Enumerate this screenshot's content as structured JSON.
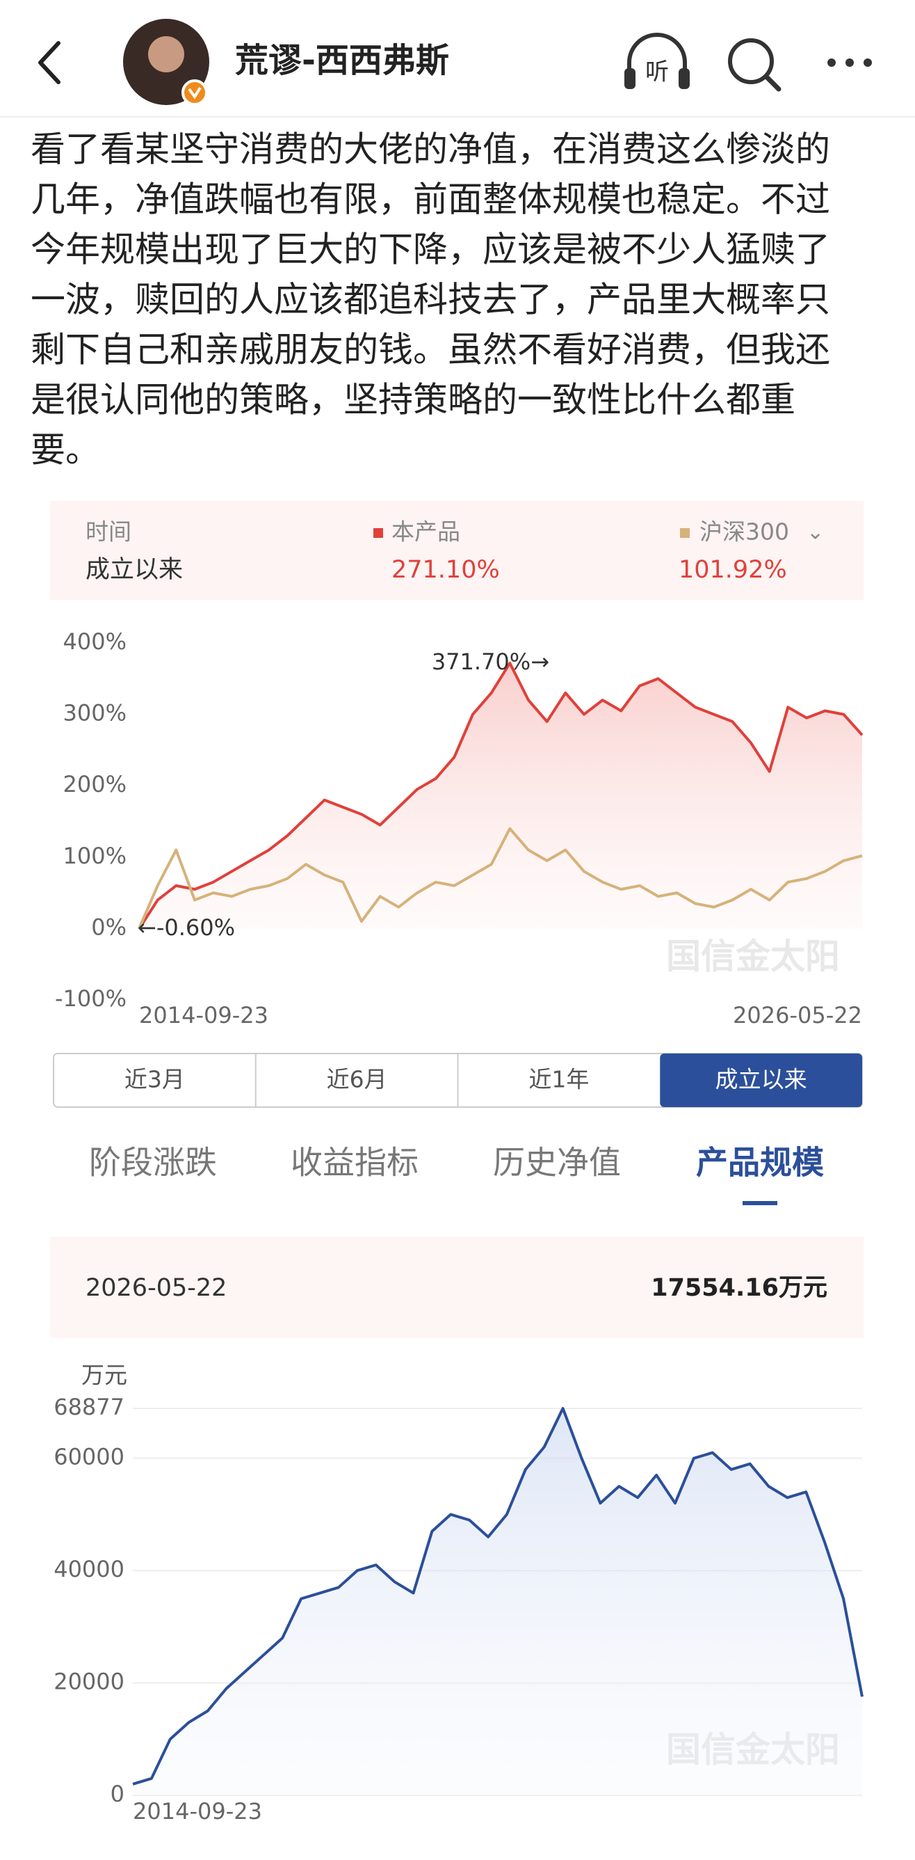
{
  "header": {
    "name": "荒谬-西西弗斯",
    "listen_icon": "听"
  },
  "post": {
    "lines": [
      "看了看某坚守消费的大佬的净值，在消费这么惨淡的",
      "几年，净值跌幅也有限，前面整体规模也稳定。不过",
      "今年规模出现了巨大的下降，应该是被不少人猛赎了",
      "一波，赎回的人应该都追科技去了，产品里大概率只",
      "剩下自己和亲戚朋友的钱。虽然不看好消费，但我还",
      "是很认同他的策略，坚持策略的一致性比什么都重",
      "要。"
    ]
  },
  "chart_data": [
    {
      "type": "line",
      "summary": {
        "time_label": "时间",
        "time_value": "成立以来",
        "values": [
          "271.10%",
          "101.92%"
        ]
      },
      "categories": [
        "2014-09-23",
        null,
        null,
        null,
        null,
        null,
        null,
        null,
        null,
        null,
        null,
        null,
        null,
        null,
        null,
        null,
        null,
        null,
        null,
        null,
        null,
        null,
        null,
        null,
        null,
        null,
        null,
        null,
        null,
        null,
        null,
        null,
        null,
        null,
        null,
        null,
        null,
        null,
        null,
        "2026-05-22"
      ],
      "series": [
        {
          "name": "本产品",
          "color": "#e0403a",
          "area": true,
          "values": [
            -0.6,
            40,
            60,
            55,
            65,
            80,
            95,
            110,
            130,
            155,
            180,
            170,
            160,
            145,
            170,
            195,
            210,
            240,
            300,
            330,
            371.7,
            320,
            290,
            330,
            300,
            320,
            305,
            340,
            350,
            330,
            310,
            300,
            290,
            260,
            220,
            310,
            295,
            305,
            300,
            271.1
          ]
        },
        {
          "name": "沪深300",
          "color": "#d6b27a",
          "area": false,
          "values": [
            0,
            60,
            110,
            40,
            50,
            45,
            55,
            60,
            70,
            90,
            75,
            65,
            10,
            45,
            30,
            50,
            65,
            60,
            75,
            90,
            140,
            110,
            95,
            110,
            80,
            65,
            55,
            60,
            45,
            50,
            35,
            30,
            40,
            55,
            40,
            65,
            70,
            80,
            95,
            101.92
          ]
        }
      ],
      "ylim": [
        -100,
        400
      ],
      "yticks": [
        {
          "value": -100,
          "label": "-100%"
        },
        {
          "value": 0,
          "label": "0%"
        },
        {
          "value": 100,
          "label": "100%"
        },
        {
          "value": 200,
          "label": "200%"
        },
        {
          "value": 300,
          "label": "300%"
        },
        {
          "value": 400,
          "label": "400%"
        }
      ],
      "grid": false,
      "annotations": [
        "371.70%→",
        "←-0.60%"
      ]
    },
    {
      "type": "line",
      "y_label": "万元",
      "categories": [
        "2014-09-23",
        null,
        null,
        null,
        null,
        null,
        null,
        null,
        null,
        null,
        null,
        null,
        null,
        null,
        null,
        null,
        null,
        null,
        null,
        null,
        null,
        null,
        null,
        null,
        null,
        null,
        null,
        null,
        null,
        null,
        null,
        null,
        null,
        null,
        null,
        null,
        null,
        null,
        null,
        null
      ],
      "series": [
        {
          "name": "产品规模",
          "color": "#2b4f9a",
          "area": true,
          "values": [
            2000,
            3000,
            10000,
            13000,
            15000,
            19000,
            22000,
            25000,
            28000,
            35000,
            36000,
            37000,
            40000,
            41000,
            38000,
            36000,
            47000,
            50000,
            49000,
            46000,
            50000,
            58000,
            62000,
            68877,
            60000,
            52000,
            55000,
            53000,
            57000,
            52000,
            60000,
            61000,
            58000,
            59000,
            55000,
            53000,
            54000,
            45000,
            35000,
            17554.16
          ]
        }
      ],
      "ylim": [
        0,
        68877
      ],
      "yticks": [
        0,
        20000,
        40000,
        60000,
        68877
      ],
      "grid": true,
      "annotations": []
    }
  ],
  "range_buttons": [
    "近3月",
    "近6月",
    "近1年",
    "成立以来"
  ],
  "tabs": [
    "阶段涨跌",
    "收益指标",
    "历史净值",
    "产品规模"
  ],
  "scale_card": {
    "date": "2026-05-22",
    "value": "17554.16万元"
  },
  "watermark": "国信金太阳"
}
